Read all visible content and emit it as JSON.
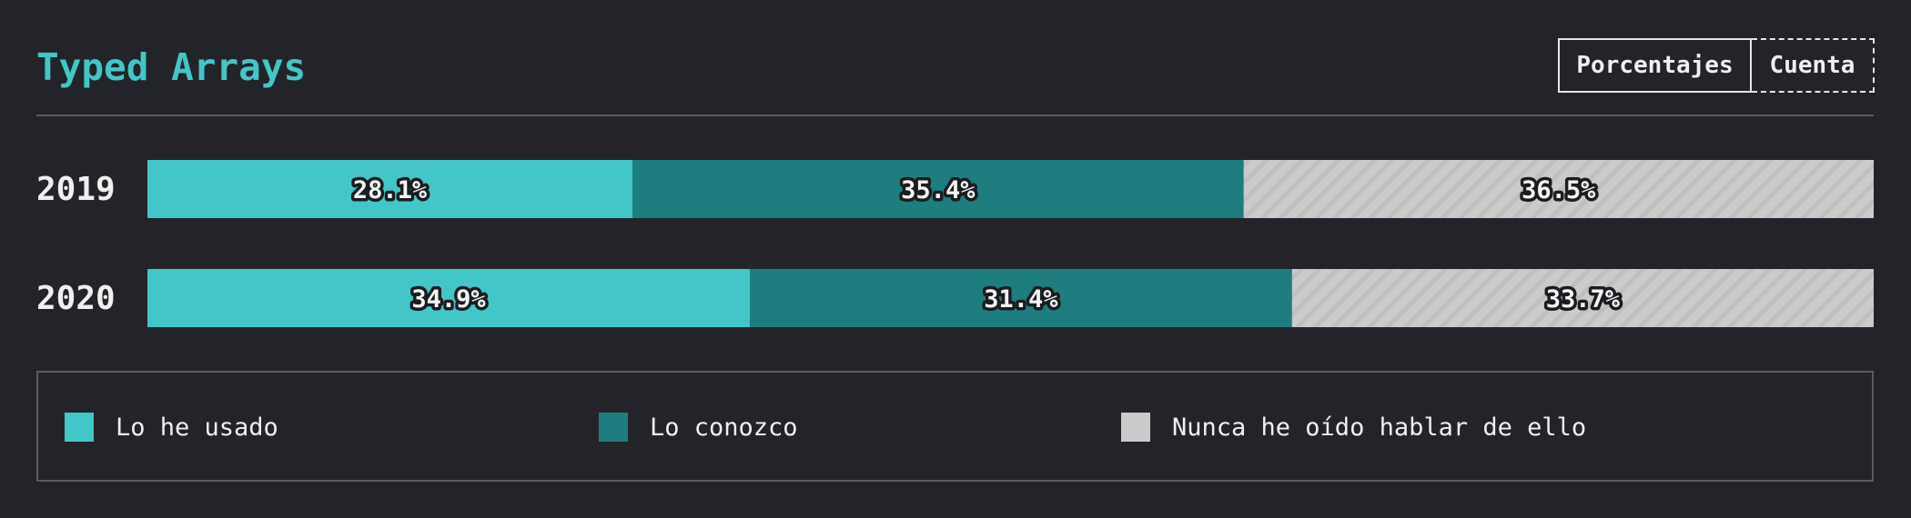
{
  "chart_data": {
    "type": "bar",
    "title": "Typed Arrays",
    "orientation": "horizontal",
    "stacked": true,
    "categories": [
      "2019",
      "2020"
    ],
    "series": [
      {
        "name": "Lo he usado",
        "values": [
          28.1,
          34.9
        ],
        "labels": [
          "28.1%",
          "34.9%"
        ],
        "color": "#43c6c8"
      },
      {
        "name": "Lo conozco",
        "values": [
          35.4,
          31.4
        ],
        "labels": [
          "35.4%",
          "31.4%"
        ],
        "color": "#1e7d7e"
      },
      {
        "name": "Nunca he oído hablar de ello",
        "values": [
          36.5,
          33.7
        ],
        "labels": [
          "36.5%",
          "33.7%"
        ],
        "color": "#cbcbcb",
        "pattern": "diagonal-stripes"
      }
    ],
    "xlim": [
      0,
      100
    ],
    "grid": false,
    "legend_position": "bottom"
  },
  "controls": {
    "percentages_label": "Porcentajes",
    "count_label": "Cuenta",
    "active": "Porcentajes"
  },
  "colors": {
    "background": "#232429",
    "accent": "#43c6c8",
    "text": "#f0f0f0",
    "border": "#5a5b61"
  }
}
